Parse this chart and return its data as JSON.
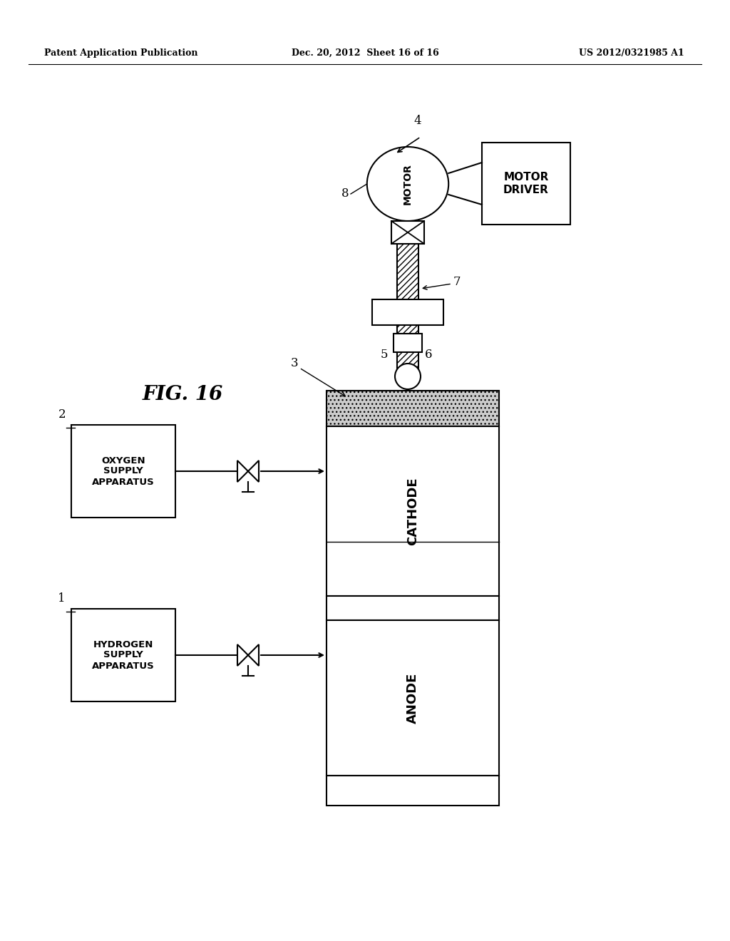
{
  "bg_color": "#ffffff",
  "line_color": "#000000",
  "header_left": "Patent Application Publication",
  "header_mid": "Dec. 20, 2012  Sheet 16 of 16",
  "header_right": "US 2012/0321985 A1",
  "fig_label": "FIG. 16"
}
